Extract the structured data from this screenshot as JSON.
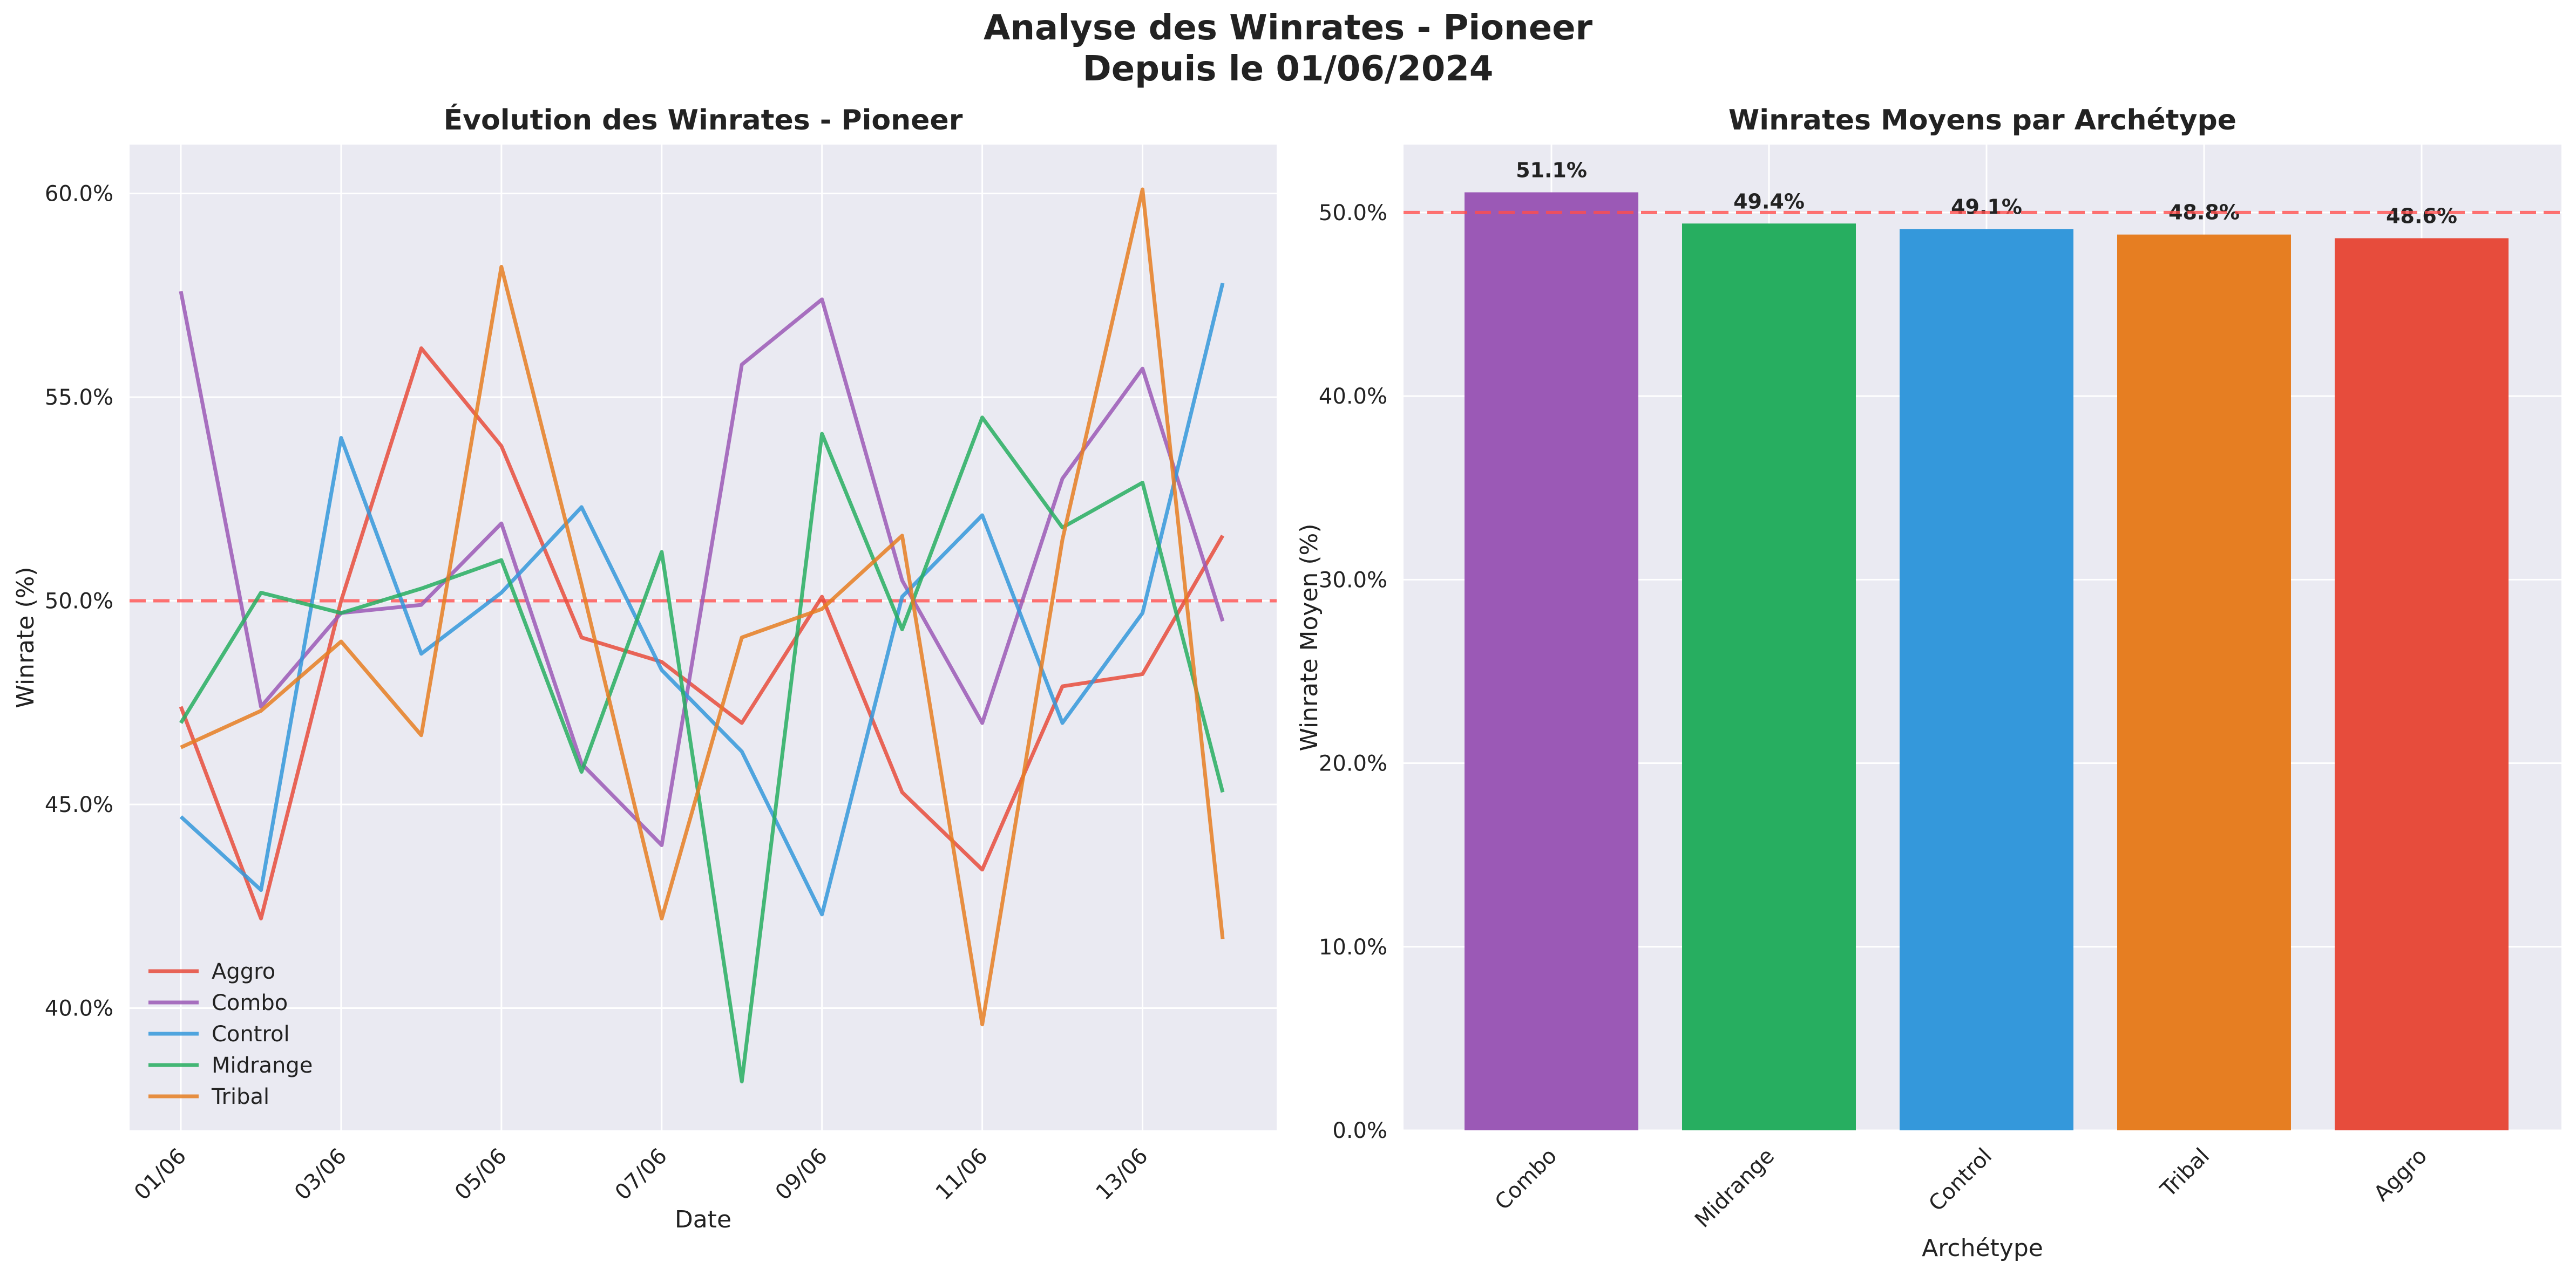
{
  "figure": {
    "title_line1": "Analyse des Winrates - Pioneer",
    "title_line2": "Depuis le 01/06/2024"
  },
  "chart_data": [
    {
      "type": "line",
      "title": "Évolution des Winrates - Pioneer",
      "xlabel": "Date",
      "ylabel": "Winrate (%)",
      "x": [
        "01/06",
        "02/06",
        "03/06",
        "04/06",
        "05/06",
        "06/06",
        "07/06",
        "08/06",
        "09/06",
        "10/06",
        "11/06",
        "12/06",
        "13/06",
        "14/06"
      ],
      "xticks": [
        "01/06",
        "03/06",
        "05/06",
        "07/06",
        "09/06",
        "11/06",
        "13/06"
      ],
      "yticks": [
        "40.0%",
        "45.0%",
        "50.0%",
        "55.0%",
        "60.0%"
      ],
      "ylim": [
        37,
        61.2
      ],
      "reference_line": {
        "y": 50,
        "color": "#ff4d4d",
        "style": "dashed"
      },
      "grid": true,
      "legend": "bottom-left",
      "series": [
        {
          "name": "Aggro",
          "color": "#e74c3c",
          "values": [
            47.4,
            42.2,
            50.0,
            56.2,
            53.8,
            49.1,
            48.5,
            47.0,
            50.1,
            45.3,
            43.4,
            47.9,
            48.2,
            51.6
          ]
        },
        {
          "name": "Combo",
          "color": "#9b59b6",
          "values": [
            57.6,
            47.4,
            49.7,
            49.9,
            51.9,
            46.0,
            44.0,
            55.8,
            57.4,
            50.5,
            47.0,
            53.0,
            55.7,
            49.5
          ]
        },
        {
          "name": "Control",
          "color": "#3498db",
          "values": [
            44.7,
            42.9,
            54.0,
            48.7,
            50.2,
            52.3,
            48.3,
            46.3,
            42.3,
            50.1,
            52.1,
            47.0,
            49.7,
            57.8
          ]
        },
        {
          "name": "Midrange",
          "color": "#27ae60",
          "values": [
            47.0,
            50.2,
            49.7,
            50.3,
            51.0,
            45.8,
            51.2,
            38.2,
            54.1,
            49.3,
            54.5,
            51.8,
            52.9,
            45.3
          ]
        },
        {
          "name": "Tribal",
          "color": "#e67e22",
          "values": [
            46.4,
            47.3,
            49.0,
            46.7,
            58.2,
            50.4,
            42.2,
            49.1,
            49.8,
            51.6,
            39.6,
            51.5,
            60.1,
            41.7
          ]
        }
      ]
    },
    {
      "type": "bar",
      "title": "Winrates Moyens par Archétype",
      "xlabel": "Archétype",
      "ylabel": "Winrate Moyen (%)",
      "categories": [
        "Combo",
        "Midrange",
        "Control",
        "Tribal",
        "Aggro"
      ],
      "values": [
        51.1,
        49.4,
        49.1,
        48.8,
        48.6
      ],
      "value_labels": [
        "51.1%",
        "49.4%",
        "49.1%",
        "48.8%",
        "48.6%"
      ],
      "colors": [
        "#9b59b6",
        "#27ae60",
        "#3498db",
        "#e67e22",
        "#e74c3c"
      ],
      "yticks": [
        "0.0%",
        "10.0%",
        "20.0%",
        "30.0%",
        "40.0%",
        "50.0%"
      ],
      "ylim": [
        0,
        53.7
      ],
      "reference_line": {
        "y": 50,
        "color": "#ff4d4d",
        "style": "dashed"
      },
      "grid": true
    }
  ]
}
